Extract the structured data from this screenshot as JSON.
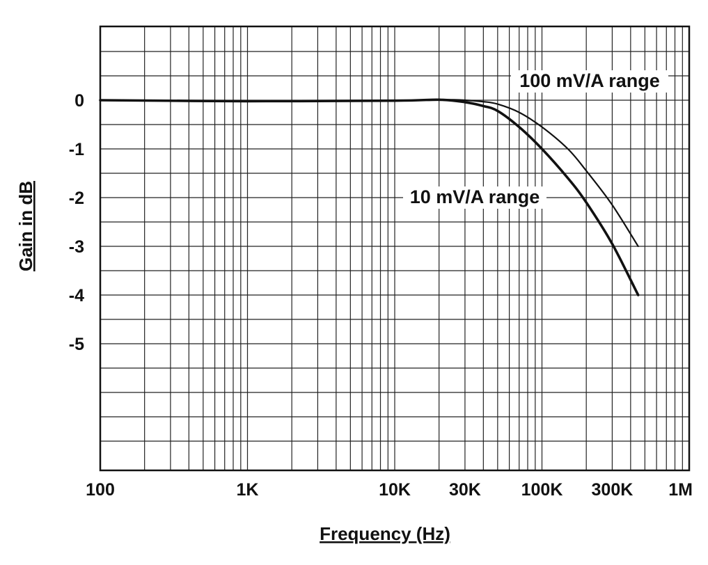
{
  "chart_data": {
    "type": "line",
    "title": "",
    "xlabel": "Frequency (Hz)",
    "ylabel": "Gain in dB",
    "x_scale": "log",
    "xlim": [
      100,
      1000000
    ],
    "ylim": [
      -7.5,
      1.5
    ],
    "grid": true,
    "x_ticks": [
      {
        "value": 100,
        "label": "100"
      },
      {
        "value": 1000,
        "label": "1K"
      },
      {
        "value": 10000,
        "label": "10K"
      },
      {
        "value": 30000,
        "label": "30K"
      },
      {
        "value": 100000,
        "label": "100K"
      },
      {
        "value": 300000,
        "label": "300K"
      },
      {
        "value": 1000000,
        "label": "1M"
      }
    ],
    "y_ticks": [
      {
        "value": 0,
        "label": "0"
      },
      {
        "value": -1,
        "label": "-1"
      },
      {
        "value": -2,
        "label": "-2"
      },
      {
        "value": -3,
        "label": "-3"
      },
      {
        "value": -4,
        "label": "-4"
      },
      {
        "value": -5,
        "label": "-5"
      }
    ],
    "series": [
      {
        "name": "100 mV/A range",
        "color": "#111111",
        "x": [
          100,
          1000,
          10000,
          20000,
          30000,
          40000,
          50000,
          70000,
          100000,
          150000,
          200000,
          300000,
          450000
        ],
        "y": [
          0,
          -0.02,
          -0.01,
          0.01,
          0,
          -0.03,
          -0.08,
          -0.25,
          -0.55,
          -1.0,
          -1.45,
          -2.15,
          -3.0
        ]
      },
      {
        "name": "10 mV/A range",
        "color": "#111111",
        "x": [
          100,
          1000,
          10000,
          20000,
          30000,
          40000,
          50000,
          70000,
          100000,
          150000,
          200000,
          300000,
          450000
        ],
        "y": [
          0,
          -0.02,
          -0.01,
          0.01,
          -0.04,
          -0.12,
          -0.22,
          -0.55,
          -1.0,
          -1.6,
          -2.1,
          -2.95,
          -4.0
        ]
      }
    ]
  }
}
